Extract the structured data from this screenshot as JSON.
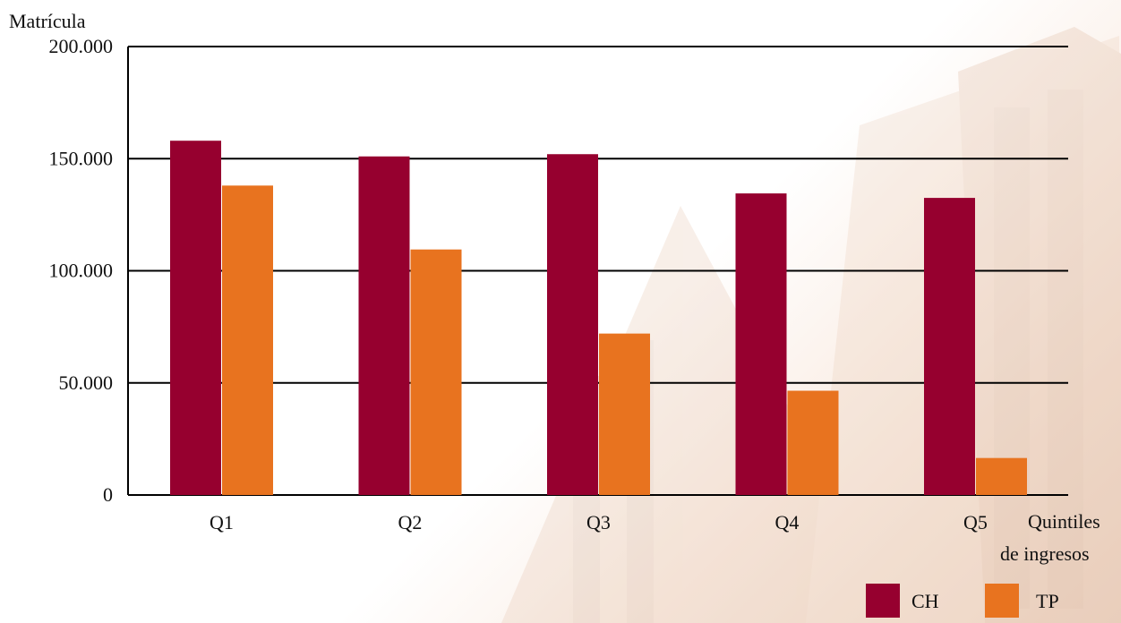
{
  "chart_data": {
    "type": "bar",
    "ylabel": "Matrícula",
    "xlabel_lines": [
      "Quintiles",
      "de ingresos"
    ],
    "categories": [
      "Q1",
      "Q2",
      "Q3",
      "Q4",
      "Q5"
    ],
    "series": [
      {
        "name": "CH",
        "values": [
          158000,
          151000,
          152000,
          134500,
          132500
        ]
      },
      {
        "name": "TP",
        "values": [
          138000,
          109500,
          72000,
          46500,
          16500
        ]
      }
    ],
    "yticks": [
      {
        "value": 0,
        "label": "0"
      },
      {
        "value": 50000,
        "label": "50.000"
      },
      {
        "value": 100000,
        "label": "100.000"
      },
      {
        "value": 150000,
        "label": "150.000"
      },
      {
        "value": 200000,
        "label": "200.000"
      }
    ],
    "ylim": [
      0,
      200000
    ],
    "grid": true,
    "legend_position": "bottom-right"
  },
  "colors": {
    "CH": "#96002f",
    "TP": "#e8731f",
    "grid": "#000000"
  }
}
